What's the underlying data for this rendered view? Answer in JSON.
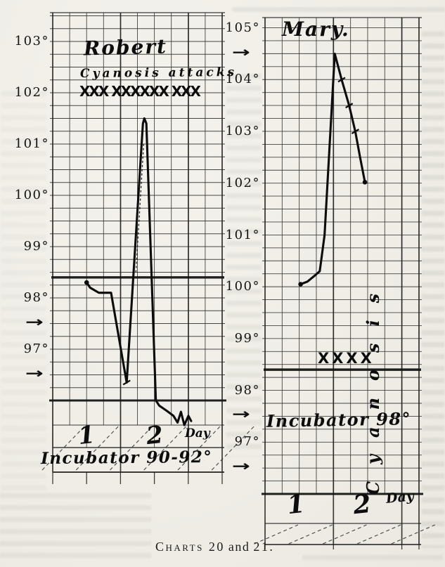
{
  "page": {
    "caption": {
      "lead": "Charts 20",
      "mid": "and",
      "tail": "21."
    },
    "icons": {
      "margin_arrow": "→"
    }
  },
  "chart_data": [
    {
      "type": "line",
      "chart_number": 20,
      "title": "Robert",
      "annotation": "Cyanosis attacks",
      "attack_marks": "XXX XXXXXX XXX",
      "incubator_note": "Incubator 90-92°",
      "day_axis_label": "Day",
      "day_labels": [
        {
          "label": "1",
          "day": 1.5
        },
        {
          "label": "2",
          "day": 2.5
        }
      ],
      "yticks": [
        {
          "label": "103°",
          "temp": 103
        },
        {
          "label": "102°",
          "temp": 102
        },
        {
          "label": "101°",
          "temp": 101
        },
        {
          "label": "100°",
          "temp": 100
        },
        {
          "label": "99°",
          "temp": 99
        },
        {
          "label": "98°",
          "temp": 98
        },
        {
          "label": "97°",
          "temp": 97
        }
      ],
      "arrow_marker_temps": [
        97.5,
        96.5
      ],
      "normal_line_temp": 98.4,
      "ylim": [
        95.5,
        103.6
      ],
      "xlim_days": [
        1,
        3.5
      ],
      "grid": true,
      "series": [
        {
          "name": "temperature",
          "points": [
            {
              "day": 1.5,
              "temp": 98.3,
              "marker": "dot"
            },
            {
              "day": 1.55,
              "temp": 98.2
            },
            {
              "day": 1.68,
              "temp": 98.1
            },
            {
              "day": 1.86,
              "temp": 98.1
            },
            {
              "day": 2.09,
              "temp": 96.35,
              "marker": "tick"
            },
            {
              "day": 2.33,
              "temp": 101.4
            },
            {
              "day": 2.35,
              "temp": 101.5
            },
            {
              "day": 2.38,
              "temp": 101.4
            },
            {
              "day": 2.52,
              "temp": 96.0
            },
            {
              "day": 2.57,
              "temp": 95.9
            },
            {
              "day": 2.68,
              "temp": 95.8
            },
            {
              "day": 2.78,
              "temp": 95.7
            },
            {
              "day": 2.84,
              "temp": 95.57
            },
            {
              "day": 2.89,
              "temp": 95.78
            },
            {
              "day": 2.94,
              "temp": 95.52
            },
            {
              "day": 3.0,
              "temp": 95.7
            },
            {
              "day": 3.04,
              "temp": 95.6
            }
          ]
        }
      ]
    },
    {
      "type": "line",
      "chart_number": 21,
      "title": "Mary.",
      "annotation": "Cyanosis",
      "attack_marks": "XXXX",
      "incubator_note": "Incubator 98°",
      "day_axis_label": "Day",
      "day_labels": [
        {
          "label": "1",
          "day": 1.45
        },
        {
          "label": "2",
          "day": 2.42
        }
      ],
      "yticks": [
        {
          "label": "105°",
          "temp": 105
        },
        {
          "label": "104°",
          "temp": 104
        },
        {
          "label": "103°",
          "temp": 103
        },
        {
          "label": "102°",
          "temp": 102
        },
        {
          "label": "101°",
          "temp": 101
        },
        {
          "label": "100°",
          "temp": 100
        },
        {
          "label": "99°",
          "temp": 99
        },
        {
          "label": "98°",
          "temp": 98
        },
        {
          "label": "97°",
          "temp": 97
        }
      ],
      "arrow_marker_temps": [
        104.5,
        97.5,
        96.5
      ],
      "normal_line_temp": 98.4,
      "ylim": [
        96,
        105.2
      ],
      "xlim_days": [
        1,
        3.25
      ],
      "grid": true,
      "series": [
        {
          "name": "temperature",
          "points": [
            {
              "day": 1.52,
              "temp": 100.05,
              "marker": "dot"
            },
            {
              "day": 1.62,
              "temp": 100.1
            },
            {
              "day": 1.73,
              "temp": 100.22
            },
            {
              "day": 1.8,
              "temp": 100.3
            },
            {
              "day": 1.82,
              "temp": 100.5
            },
            {
              "day": 1.87,
              "temp": 101.0
            },
            {
              "day": 2.02,
              "temp": 104.5
            },
            {
              "day": 2.12,
              "temp": 104.0,
              "marker": "tick"
            },
            {
              "day": 2.23,
              "temp": 103.5,
              "marker": "tick"
            },
            {
              "day": 2.32,
              "temp": 103.0,
              "marker": "tick"
            },
            {
              "day": 2.39,
              "temp": 102.5
            },
            {
              "day": 2.46,
              "temp": 102.02,
              "marker": "dot"
            }
          ]
        }
      ]
    }
  ]
}
